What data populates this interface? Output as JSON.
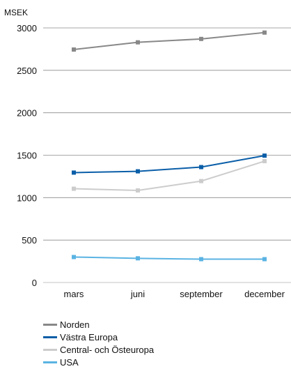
{
  "chart_data": {
    "type": "line",
    "ylabel": "MSEK",
    "categories": [
      "mars",
      "juni",
      "september",
      "december"
    ],
    "ylim": [
      0,
      3000
    ],
    "yticks": [
      0,
      500,
      1000,
      1500,
      2000,
      2500,
      3000
    ],
    "grid": true,
    "legend_position": "bottom-left",
    "series": [
      {
        "name": "Norden",
        "color": "#888888",
        "values": [
          2745,
          2830,
          2870,
          2945
        ]
      },
      {
        "name": "Västra Europa",
        "color": "#0a5ea8",
        "values": [
          1295,
          1310,
          1360,
          1495
        ]
      },
      {
        "name": "Central- och Östeuropa",
        "color": "#cccccc",
        "values": [
          1105,
          1085,
          1195,
          1430
        ]
      },
      {
        "name": "USA",
        "color": "#5ab3e3",
        "values": [
          300,
          285,
          275,
          275
        ]
      }
    ]
  }
}
